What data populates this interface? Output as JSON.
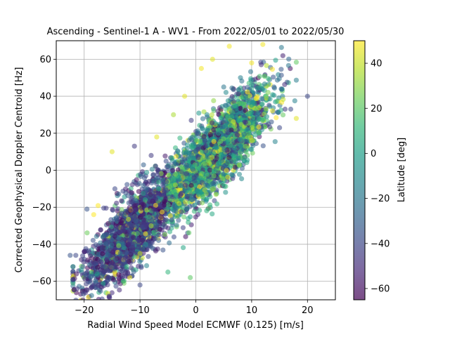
{
  "chart_data": {
    "type": "scatter",
    "title": "Ascending - Sentinel-1 A - WV1 - From 2022/05/01 to 2022/05/30",
    "xlabel": "Radial Wind Speed Model ECMWF (0.125) [m/s]",
    "ylabel": "Corrected Geophysical Doppler Centroid [Hz]",
    "xlim": [
      -25,
      25
    ],
    "ylim": [
      -70,
      70
    ],
    "xticks": [
      -20,
      -10,
      0,
      10,
      20
    ],
    "xtick_labels": [
      "−20",
      "−10",
      "0",
      "10",
      "20"
    ],
    "yticks": [
      -60,
      -40,
      -20,
      0,
      20,
      40,
      60
    ],
    "ytick_labels": [
      "−60",
      "−40",
      "−20",
      "0",
      "20",
      "40",
      "60"
    ],
    "grid": true,
    "point_alpha": 0.55,
    "colorbar": {
      "label": "Latitude [deg]",
      "range": [
        -65,
        50
      ],
      "ticks": [
        -60,
        -40,
        -20,
        0,
        20,
        40
      ],
      "tick_labels": [
        "−60",
        "−40",
        "−20",
        "0",
        "20",
        "40"
      ],
      "colormap": "viridis",
      "colors": [
        "#440154",
        "#482878",
        "#3e4989",
        "#31688e",
        "#26828e",
        "#1f9e89",
        "#35b779",
        "#6ece58",
        "#b5de2b",
        "#fde725"
      ]
    },
    "points_sample": [
      {
        "x": -22.5,
        "y": -46,
        "lat": -35
      },
      {
        "x": -21.5,
        "y": -46,
        "lat": -40
      },
      {
        "x": -22.0,
        "y": -59,
        "lat": -45
      },
      {
        "x": -20.0,
        "y": -44,
        "lat": -50
      },
      {
        "x": -19.5,
        "y": -21,
        "lat": -35
      },
      {
        "x": -17.0,
        "y": -63,
        "lat": -50
      },
      {
        "x": -15.5,
        "y": -68,
        "lat": -45
      },
      {
        "x": -15.0,
        "y": -50,
        "lat": -55
      },
      {
        "x": -14.5,
        "y": -35,
        "lat": -45
      },
      {
        "x": -14.5,
        "y": -10,
        "lat": -40
      },
      {
        "x": -15.0,
        "y": 10,
        "lat": 45
      },
      {
        "x": -13.0,
        "y": -60,
        "lat": 15
      },
      {
        "x": -12.0,
        "y": -40,
        "lat": -50
      },
      {
        "x": -11.0,
        "y": -25,
        "lat": -35
      },
      {
        "x": -11.0,
        "y": 13,
        "lat": -45
      },
      {
        "x": -10.0,
        "y": -62,
        "lat": -40
      },
      {
        "x": -10.0,
        "y": -45,
        "lat": 40
      },
      {
        "x": -9.0,
        "y": -10,
        "lat": -30
      },
      {
        "x": -8.0,
        "y": 8,
        "lat": -45
      },
      {
        "x": -8.0,
        "y": -30,
        "lat": 35
      },
      {
        "x": -7.0,
        "y": 18,
        "lat": 45
      },
      {
        "x": -5.0,
        "y": -55,
        "lat": 10
      },
      {
        "x": -5.0,
        "y": 2,
        "lat": -40
      },
      {
        "x": -4.0,
        "y": 30,
        "lat": 35
      },
      {
        "x": -3.0,
        "y": -18,
        "lat": 40
      },
      {
        "x": -2.0,
        "y": 40,
        "lat": 45
      },
      {
        "x": -1.0,
        "y": -58,
        "lat": 20
      },
      {
        "x": 0.0,
        "y": 10,
        "lat": -20
      },
      {
        "x": 1.0,
        "y": 55,
        "lat": 48
      },
      {
        "x": 2.0,
        "y": 30,
        "lat": -10
      },
      {
        "x": 3.0,
        "y": 60,
        "lat": 45
      },
      {
        "x": 4.0,
        "y": 20,
        "lat": 0
      },
      {
        "x": 5.0,
        "y": 45,
        "lat": -20
      },
      {
        "x": 6.0,
        "y": 67,
        "lat": 48
      },
      {
        "x": 7.0,
        "y": 35,
        "lat": 10
      },
      {
        "x": 8.0,
        "y": 50,
        "lat": -15
      },
      {
        "x": 9.0,
        "y": 10,
        "lat": 20
      },
      {
        "x": 10.0,
        "y": 58,
        "lat": 48
      },
      {
        "x": 11.0,
        "y": 30,
        "lat": -20
      },
      {
        "x": 12.0,
        "y": 68,
        "lat": 48
      },
      {
        "x": 13.0,
        "y": 25,
        "lat": -35
      },
      {
        "x": 14.0,
        "y": 45,
        "lat": -30
      },
      {
        "x": 15.0,
        "y": 23,
        "lat": -40
      },
      {
        "x": 16.0,
        "y": 33,
        "lat": -45
      },
      {
        "x": 17.0,
        "y": 33,
        "lat": -40
      },
      {
        "x": 18.0,
        "y": 28,
        "lat": 45
      },
      {
        "x": 20.0,
        "y": 40,
        "lat": -40
      }
    ],
    "trend": {
      "slope": 2.9,
      "intercept": 0,
      "y_spread": 13,
      "x_range": [
        -22,
        18
      ],
      "n_points": 4500
    }
  }
}
